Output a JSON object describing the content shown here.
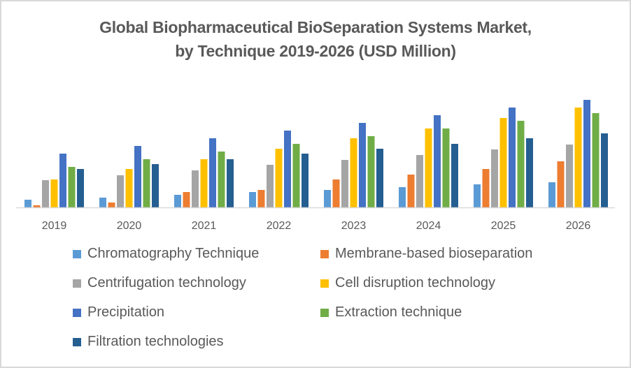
{
  "chart_data": {
    "type": "bar",
    "title": "Global Biopharmaceutical BioSeparation Systems Market, by Technique 2019-2026 (USD Million)",
    "title_lines": [
      "Global Biopharmaceutical  BioSeparation Systems Market,",
      "by Technique 2019-2026 (USD Million)"
    ],
    "xlabel": "",
    "ylabel": "",
    "y_axis_shown": false,
    "grid": false,
    "legend_position": "bottom",
    "value_units": "relative (no axis scale shown; estimated from bar heights)",
    "ylim": [
      0,
      160
    ],
    "categories": [
      "2019",
      "2020",
      "2021",
      "2022",
      "2023",
      "2024",
      "2025",
      "2026"
    ],
    "series": [
      {
        "name": "Chromatography Technique",
        "color": "#5b9bd5",
        "values": [
          11,
          14,
          18,
          22,
          25,
          29,
          33,
          36
        ]
      },
      {
        "name": "Membrane-based bioseparation",
        "color": "#ed7d31",
        "values": [
          3,
          7,
          22,
          25,
          40,
          47,
          55,
          66
        ]
      },
      {
        "name": "Centrifugation technology",
        "color": "#a5a5a5",
        "values": [
          39,
          46,
          53,
          61,
          68,
          75,
          83,
          90
        ]
      },
      {
        "name": "Cell disruption technology",
        "color": "#ffc000",
        "values": [
          40,
          55,
          69,
          84,
          99,
          113,
          128,
          143
        ]
      },
      {
        "name": "Precipitation",
        "color": "#4472c4",
        "values": [
          77,
          88,
          99,
          110,
          121,
          132,
          143,
          154
        ]
      },
      {
        "name": "Extraction technique",
        "color": "#70ad47",
        "values": [
          58,
          69,
          80,
          91,
          102,
          113,
          124,
          135
        ]
      },
      {
        "name": "Filtration technologies",
        "color": "#255e91",
        "values": [
          55,
          62,
          69,
          77,
          84,
          91,
          99,
          106
        ]
      }
    ]
  },
  "colors": {
    "text": "#595959",
    "axis": "#d9d9d9",
    "border": "#d9d9d9"
  }
}
